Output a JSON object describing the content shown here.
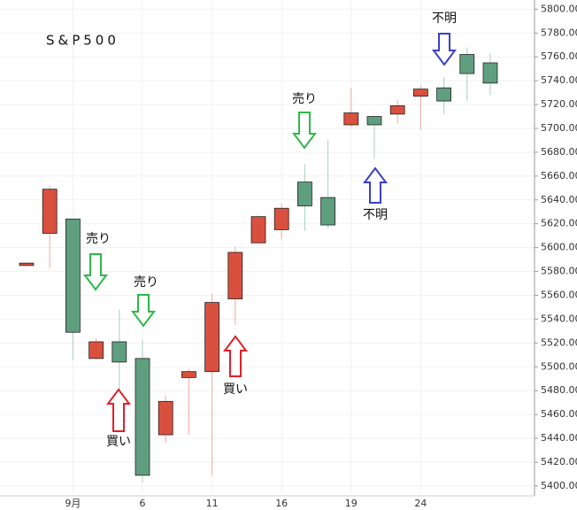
{
  "chart_data": {
    "type": "candlestick",
    "title": "S&P500",
    "categories": [
      null,
      null,
      "9月",
      null,
      null,
      "6",
      null,
      null,
      "11",
      null,
      null,
      "16",
      null,
      null,
      "19",
      null,
      null,
      "24",
      null,
      null,
      null
    ],
    "open": [
      5585,
      5612,
      5624,
      5507,
      5521,
      5507,
      5443,
      5491,
      5496,
      5557,
      5604,
      5615,
      5655,
      5642,
      5703,
      5710,
      5712,
      5727,
      5734,
      5762,
      5755
    ],
    "high": [
      5588,
      5652,
      5624,
      5524,
      5548,
      5523,
      5476,
      5498,
      5561,
      5601,
      5627,
      5637,
      5670,
      5690,
      5734,
      5710,
      5724,
      5736,
      5743,
      5768,
      5763
    ],
    "low": [
      5584,
      5583,
      5506,
      5506,
      5480,
      5403,
      5436,
      5443,
      5409,
      5535,
      5604,
      5607,
      5614,
      5616,
      5701,
      5675,
      5704,
      5699,
      5712,
      5723,
      5728
    ],
    "close": [
      5587,
      5649,
      5529,
      5521,
      5504,
      5409,
      5471,
      5496,
      5554,
      5596,
      5626,
      5633,
      5635,
      5619,
      5713,
      5703,
      5719,
      5733,
      5723,
      5746,
      5738
    ],
    "up_color": "#d9503f",
    "down_color": "#5f9f7f",
    "ylim": [
      5394,
      5804
    ],
    "yticks": [
      {
        "value": 5400,
        "label": "5400.00"
      },
      {
        "value": 5420,
        "label": "5420.00"
      },
      {
        "value": 5440,
        "label": "5440.00"
      },
      {
        "value": 5460,
        "label": "5460.00"
      },
      {
        "value": 5480,
        "label": "5480.00"
      },
      {
        "value": 5500,
        "label": "5500.00"
      },
      {
        "value": 5520,
        "label": "5520.00"
      },
      {
        "value": 5540,
        "label": "5540.00"
      },
      {
        "value": 5560,
        "label": "5560.00"
      },
      {
        "value": 5580,
        "label": "5580.00"
      },
      {
        "value": 5600,
        "label": "5600.00"
      },
      {
        "value": 5620,
        "label": "5620.00"
      },
      {
        "value": 5640,
        "label": "5640.00"
      },
      {
        "value": 5660,
        "label": "5660.00"
      },
      {
        "value": 5680,
        "label": "5680.00"
      },
      {
        "value": 5700,
        "label": "5700.00"
      },
      {
        "value": 5720,
        "label": "5720.00"
      },
      {
        "value": 5740,
        "label": "5740.00"
      },
      {
        "value": 5760,
        "label": "5760.00"
      },
      {
        "value": 5780,
        "label": "5780.00"
      },
      {
        "value": 5800,
        "label": "5800.00"
      }
    ],
    "grid": true,
    "annotations": [
      {
        "text": "売り",
        "color": "#2db84a"
      },
      {
        "text": "売り",
        "color": "#2db84a"
      },
      {
        "text": "買い",
        "color": "#e0202a"
      },
      {
        "text": "買い",
        "color": "#e0202a"
      },
      {
        "text": "売り",
        "color": "#2db84a"
      },
      {
        "text": "不明",
        "color": "#3a3fc8"
      },
      {
        "text": "不明",
        "color": "#3a3fc8"
      }
    ]
  }
}
